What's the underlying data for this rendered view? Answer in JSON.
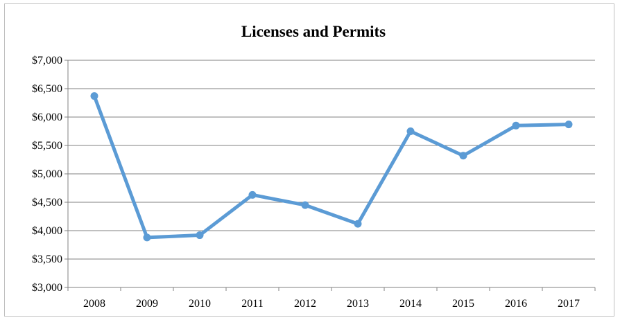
{
  "chart_data": {
    "type": "line",
    "title": "Licenses and Permits",
    "xlabel": "",
    "ylabel": "",
    "categories": [
      "2008",
      "2009",
      "2010",
      "2011",
      "2012",
      "2013",
      "2014",
      "2015",
      "2016",
      "2017"
    ],
    "series": [
      {
        "values": [
          6370,
          3880,
          3920,
          4630,
          4450,
          4120,
          5750,
          5320,
          5850,
          5870
        ]
      }
    ],
    "ylim": [
      3000,
      7000
    ],
    "y_ticks": [
      "$3,000",
      "$3,500",
      "$4,000",
      "$4,500",
      "$5,000",
      "$5,500",
      "$6,000",
      "$6,500",
      "$7,000"
    ],
    "grid": true,
    "legend": "none",
    "colors": {
      "line": "#5b9bd5",
      "grid": "#808080",
      "axis": "#808080"
    }
  }
}
